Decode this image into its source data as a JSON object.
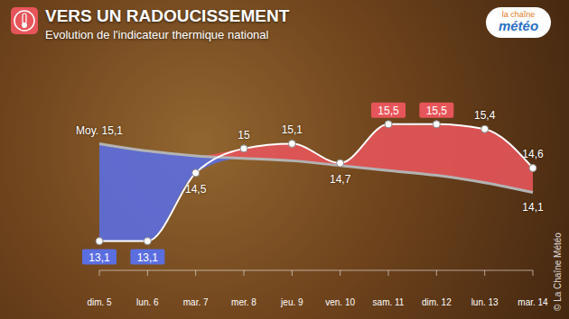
{
  "chart_data": {
    "type": "line",
    "title": "VERS UN RADOUCISSEMENT",
    "subtitle": "Evolution de l'indicateur thermique national",
    "annotations": [
      "la chaîne",
      "météo",
      "© La Chaîne Météo"
    ],
    "categories": [
      "dim. 5",
      "lun. 6",
      "mar. 7",
      "mer. 8",
      "jeu. 9",
      "ven. 10",
      "sam. 11",
      "dim. 12",
      "lun. 13",
      "mar. 14"
    ],
    "series": [
      {
        "values": [
          13.1,
          13.1,
          14.5,
          15,
          15.1,
          14.7,
          15.5,
          15.5,
          15.4,
          14.6
        ],
        "value_labels": [
          "13,1",
          "13,1",
          "14,5",
          "15",
          "15,1",
          "14,7",
          "15,5",
          "15,5",
          "15,4",
          "14,6"
        ],
        "color": "#ffffff",
        "marker": "circle",
        "data_labels": true
      },
      {
        "values": [
          15.1,
          14.95,
          14.85,
          14.8,
          14.75,
          14.65,
          14.55,
          14.45,
          14.3,
          14.1
        ],
        "value_labels": [
          "Moy. 15,1",
          null,
          null,
          null,
          null,
          null,
          null,
          null,
          null,
          "14,1"
        ],
        "color": "#b3b3b3",
        "marker": "none",
        "data_labels": true
      }
    ],
    "ylim": [
      12.5,
      16.2
    ],
    "tick_labels": "x",
    "grid": false
  }
}
